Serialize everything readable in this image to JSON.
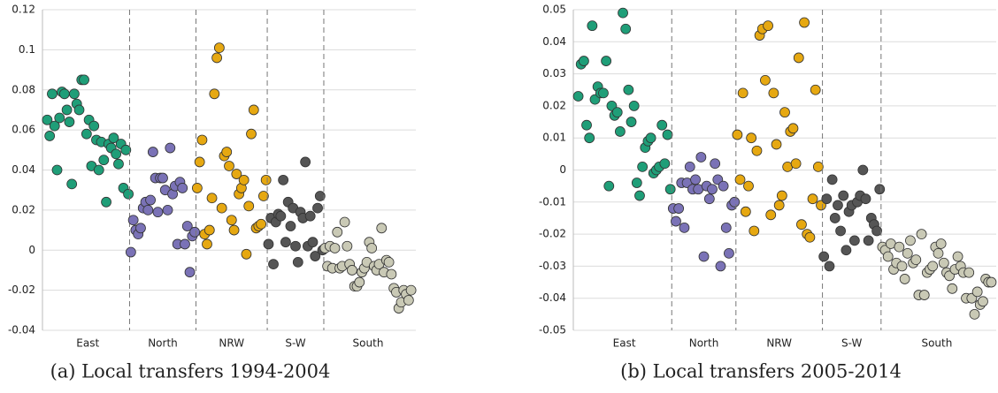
{
  "chart_data": [
    {
      "type": "strip",
      "caption": "(a) Local transfers 1994-2004",
      "categories": [
        "East",
        "North",
        "NRW",
        "S-W",
        "South"
      ],
      "ylim": [
        -0.04,
        0.12
      ],
      "yticks": [
        -0.04,
        -0.02,
        0,
        0.02,
        0.04,
        0.06,
        0.08,
        0.1,
        0.12
      ],
      "grid": true,
      "series": [
        {
          "color": "#1f9e78",
          "values": [
            0.065,
            0.057,
            0.078,
            0.062,
            0.04,
            0.066,
            0.079,
            0.078,
            0.07,
            0.064,
            0.033,
            0.078,
            0.073,
            0.07,
            0.085,
            0.085,
            0.058,
            0.065,
            0.042,
            0.062,
            0.055,
            0.04,
            0.054,
            0.045,
            0.024,
            0.053,
            0.051,
            0.056,
            0.048,
            0.043,
            0.053,
            0.031,
            0.05,
            0.028
          ]
        },
        {
          "color": "#7a72b6",
          "values": [
            -0.001,
            0.015,
            0.01,
            0.008,
            0.011,
            0.021,
            0.024,
            0.02,
            0.025,
            0.049,
            0.036,
            0.019,
            0.036,
            0.036,
            0.03,
            0.02,
            0.051,
            0.028,
            0.032,
            0.003,
            0.034,
            0.031,
            0.003,
            0.012,
            -0.011,
            0.007,
            0.009
          ]
        },
        {
          "color": "#e6a811",
          "values": [
            0.031,
            0.044,
            0.055,
            0.008,
            0.003,
            0.01,
            0.026,
            0.078,
            0.096,
            0.101,
            0.021,
            0.047,
            0.049,
            0.042,
            0.015,
            0.01,
            0.038,
            0.028,
            0.031,
            0.035,
            -0.002,
            0.022,
            0.058,
            0.07,
            0.011,
            0.012,
            0.013,
            0.027,
            0.035
          ]
        },
        {
          "color": "#555555",
          "values": [
            0.003,
            0.016,
            -0.007,
            0.014,
            0.018,
            0.017,
            0.035,
            0.004,
            0.024,
            0.012,
            0.021,
            0.002,
            -0.006,
            0.019,
            0.016,
            0.044,
            0.002,
            0.017,
            0.004,
            -0.003,
            0.021,
            0.027,
            0.0
          ]
        },
        {
          "color": "#c9c9b5",
          "values": [
            0.001,
            -0.008,
            0.002,
            -0.009,
            0.001,
            0.009,
            -0.009,
            -0.008,
            0.014,
            0.002,
            -0.007,
            -0.01,
            -0.018,
            -0.018,
            -0.016,
            -0.011,
            -0.009,
            -0.006,
            0.004,
            0.001,
            -0.008,
            -0.01,
            -0.007,
            0.011,
            -0.011,
            -0.005,
            -0.006,
            -0.012,
            -0.019,
            -0.021,
            -0.029,
            -0.026,
            -0.02,
            -0.022,
            -0.025,
            -0.02
          ]
        }
      ]
    },
    {
      "type": "strip",
      "caption": "(b) Local transfers 2005-2014",
      "categories": [
        "East",
        "North",
        "NRW",
        "S-W",
        "South"
      ],
      "ylim": [
        -0.05,
        0.05
      ],
      "yticks": [
        -0.05,
        -0.04,
        -0.03,
        -0.02,
        -0.01,
        0,
        0.01,
        0.02,
        0.03,
        0.04,
        0.05
      ],
      "grid": true,
      "series": [
        {
          "color": "#1f9e78",
          "values": [
            0.023,
            0.033,
            0.034,
            0.014,
            0.01,
            0.045,
            0.022,
            0.026,
            0.024,
            0.024,
            0.034,
            -0.005,
            0.02,
            0.017,
            0.018,
            0.012,
            0.049,
            0.044,
            0.025,
            0.015,
            0.02,
            -0.004,
            -0.008,
            0.001,
            0.007,
            0.009,
            0.01,
            -0.001,
            0.0,
            0.001,
            0.014,
            0.002,
            0.011,
            -0.006
          ]
        },
        {
          "color": "#7a72b6",
          "values": [
            -0.012,
            -0.016,
            -0.012,
            -0.004,
            -0.018,
            -0.004,
            0.001,
            -0.006,
            -0.003,
            -0.006,
            0.004,
            -0.027,
            -0.005,
            -0.009,
            -0.006,
            0.002,
            -0.003,
            -0.03,
            -0.005,
            -0.018,
            -0.026,
            -0.011,
            -0.01
          ]
        },
        {
          "color": "#e6a811",
          "values": [
            0.011,
            -0.003,
            0.024,
            -0.013,
            -0.005,
            0.01,
            -0.019,
            0.006,
            0.042,
            0.044,
            0.028,
            0.045,
            -0.014,
            0.024,
            0.008,
            -0.011,
            -0.008,
            0.018,
            0.001,
            0.012,
            0.013,
            0.002,
            0.035,
            -0.017,
            0.046,
            -0.02,
            -0.021,
            -0.009,
            0.025,
            0.001,
            -0.011
          ]
        },
        {
          "color": "#555555",
          "values": [
            -0.027,
            -0.009,
            -0.03,
            -0.003,
            -0.015,
            -0.011,
            -0.019,
            -0.008,
            -0.025,
            -0.013,
            -0.011,
            -0.022,
            -0.01,
            -0.008,
            0.0,
            -0.009,
            -0.022,
            -0.015,
            -0.017,
            -0.019,
            -0.006
          ]
        },
        {
          "color": "#c9c9b5",
          "values": [
            -0.024,
            -0.025,
            -0.027,
            -0.023,
            -0.031,
            -0.029,
            -0.024,
            -0.03,
            -0.034,
            -0.026,
            -0.022,
            -0.029,
            -0.028,
            -0.039,
            -0.02,
            -0.039,
            -0.032,
            -0.031,
            -0.03,
            -0.024,
            -0.026,
            -0.023,
            -0.029,
            -0.032,
            -0.033,
            -0.037,
            -0.031,
            -0.027,
            -0.03,
            -0.032,
            -0.04,
            -0.032,
            -0.04,
            -0.045,
            -0.038,
            -0.042,
            -0.041,
            -0.034,
            -0.035,
            -0.035
          ]
        }
      ]
    }
  ]
}
